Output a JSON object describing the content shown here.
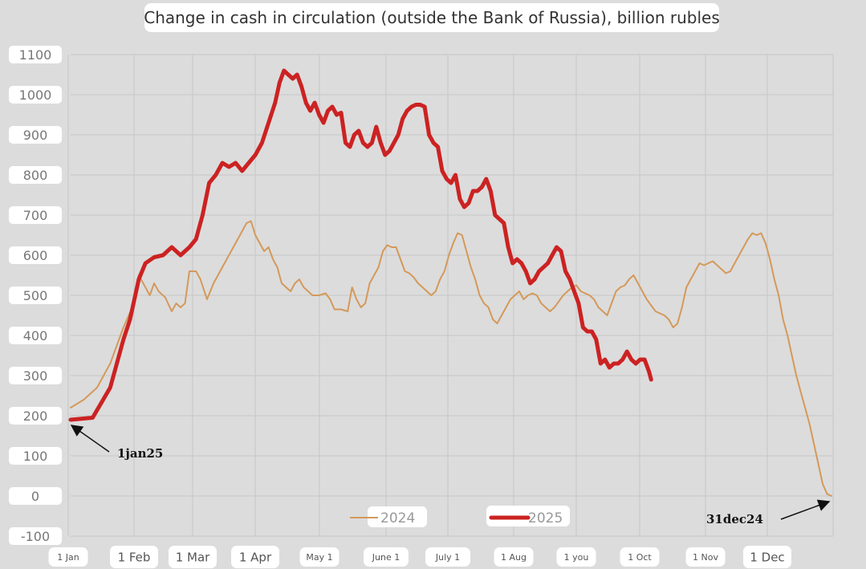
{
  "chart_data": {
    "type": "line",
    "title": "Change in cash in circulation (outside the Bank of Russia), billion rubles",
    "xlabel": "",
    "ylabel": "",
    "ylim": [
      -100,
      1100
    ],
    "yticks": [
      1100,
      1000,
      900,
      800,
      700,
      600,
      500,
      400,
      300,
      200,
      100,
      0,
      -100
    ],
    "xticks": [
      "1 Jan",
      "1 Feb",
      "1 Mar",
      "1 Apr",
      "May 1",
      "June 1",
      "July 1",
      "1 Aug",
      "1 you",
      "1 Oct",
      "1 Nov",
      "1 Dec"
    ],
    "grid": true,
    "legend": "bottom-center",
    "series": [
      {
        "name": "2024",
        "color": "#d4995a",
        "points": [
          [
            0,
            220
          ],
          [
            6,
            240
          ],
          [
            12,
            270
          ],
          [
            18,
            330
          ],
          [
            24,
            420
          ],
          [
            28,
            470
          ],
          [
            31,
            550
          ],
          [
            34,
            520
          ],
          [
            36,
            500
          ],
          [
            38,
            530
          ],
          [
            40,
            510
          ],
          [
            43,
            495
          ],
          [
            46,
            460
          ],
          [
            48,
            480
          ],
          [
            50,
            470
          ],
          [
            52,
            480
          ],
          [
            54,
            560
          ],
          [
            57,
            560
          ],
          [
            59,
            540
          ],
          [
            62,
            490
          ],
          [
            65,
            530
          ],
          [
            68,
            560
          ],
          [
            71,
            590
          ],
          [
            74,
            620
          ],
          [
            77,
            650
          ],
          [
            80,
            680
          ],
          [
            82,
            685
          ],
          [
            84,
            650
          ],
          [
            86,
            630
          ],
          [
            88,
            610
          ],
          [
            90,
            620
          ],
          [
            92,
            590
          ],
          [
            94,
            570
          ],
          [
            96,
            530
          ],
          [
            98,
            520
          ],
          [
            100,
            510
          ],
          [
            102,
            530
          ],
          [
            104,
            540
          ],
          [
            106,
            520
          ],
          [
            108,
            510
          ],
          [
            110,
            500
          ],
          [
            113,
            500
          ],
          [
            116,
            505
          ],
          [
            118,
            490
          ],
          [
            120,
            465
          ],
          [
            123,
            465
          ],
          [
            126,
            460
          ],
          [
            128,
            520
          ],
          [
            130,
            490
          ],
          [
            132,
            470
          ],
          [
            134,
            480
          ],
          [
            136,
            530
          ],
          [
            138,
            550
          ],
          [
            140,
            570
          ],
          [
            142,
            610
          ],
          [
            144,
            625
          ],
          [
            146,
            620
          ],
          [
            148,
            620
          ],
          [
            150,
            590
          ],
          [
            152,
            560
          ],
          [
            154,
            555
          ],
          [
            156,
            545
          ],
          [
            158,
            530
          ],
          [
            160,
            520
          ],
          [
            162,
            510
          ],
          [
            164,
            500
          ],
          [
            166,
            510
          ],
          [
            168,
            540
          ],
          [
            170,
            560
          ],
          [
            172,
            600
          ],
          [
            174,
            630
          ],
          [
            176,
            655
          ],
          [
            178,
            650
          ],
          [
            180,
            610
          ],
          [
            182,
            570
          ],
          [
            184,
            540
          ],
          [
            186,
            500
          ],
          [
            188,
            480
          ],
          [
            190,
            470
          ],
          [
            192,
            440
          ],
          [
            194,
            430
          ],
          [
            196,
            450
          ],
          [
            198,
            470
          ],
          [
            200,
            490
          ],
          [
            202,
            500
          ],
          [
            204,
            510
          ],
          [
            206,
            490
          ],
          [
            208,
            500
          ],
          [
            210,
            505
          ],
          [
            212,
            500
          ],
          [
            214,
            480
          ],
          [
            216,
            470
          ],
          [
            218,
            460
          ],
          [
            220,
            470
          ],
          [
            222,
            485
          ],
          [
            224,
            500
          ],
          [
            226,
            510
          ],
          [
            228,
            520
          ],
          [
            230,
            525
          ],
          [
            232,
            510
          ],
          [
            234,
            505
          ],
          [
            236,
            500
          ],
          [
            238,
            490
          ],
          [
            240,
            470
          ],
          [
            242,
            460
          ],
          [
            244,
            450
          ],
          [
            246,
            480
          ],
          [
            248,
            510
          ],
          [
            250,
            520
          ],
          [
            252,
            525
          ],
          [
            254,
            540
          ],
          [
            256,
            550
          ],
          [
            258,
            530
          ],
          [
            260,
            510
          ],
          [
            262,
            490
          ],
          [
            264,
            475
          ],
          [
            266,
            460
          ],
          [
            268,
            455
          ],
          [
            270,
            450
          ],
          [
            272,
            440
          ],
          [
            274,
            420
          ],
          [
            276,
            430
          ],
          [
            278,
            470
          ],
          [
            280,
            520
          ],
          [
            282,
            540
          ],
          [
            284,
            560
          ],
          [
            286,
            580
          ],
          [
            288,
            575
          ],
          [
            290,
            580
          ],
          [
            292,
            585
          ],
          [
            294,
            575
          ],
          [
            296,
            565
          ],
          [
            298,
            555
          ],
          [
            300,
            560
          ],
          [
            302,
            580
          ],
          [
            304,
            600
          ],
          [
            306,
            620
          ],
          [
            308,
            640
          ],
          [
            310,
            655
          ],
          [
            312,
            650
          ],
          [
            314,
            655
          ],
          [
            316,
            630
          ],
          [
            318,
            590
          ],
          [
            320,
            540
          ],
          [
            322,
            500
          ],
          [
            324,
            440
          ],
          [
            326,
            400
          ],
          [
            328,
            350
          ],
          [
            330,
            300
          ],
          [
            332,
            260
          ],
          [
            334,
            220
          ],
          [
            336,
            180
          ],
          [
            338,
            130
          ],
          [
            340,
            80
          ],
          [
            342,
            30
          ],
          [
            344,
            5
          ],
          [
            346,
            0
          ]
        ]
      },
      {
        "name": "2025",
        "color": "#cc2222",
        "points": [
          [
            0,
            190
          ],
          [
            10,
            195
          ],
          [
            18,
            270
          ],
          [
            24,
            390
          ],
          [
            27,
            440
          ],
          [
            31,
            540
          ],
          [
            34,
            580
          ],
          [
            38,
            595
          ],
          [
            42,
            600
          ],
          [
            46,
            620
          ],
          [
            50,
            600
          ],
          [
            54,
            620
          ],
          [
            57,
            640
          ],
          [
            60,
            700
          ],
          [
            63,
            780
          ],
          [
            66,
            800
          ],
          [
            69,
            830
          ],
          [
            72,
            820
          ],
          [
            75,
            830
          ],
          [
            78,
            810
          ],
          [
            81,
            830
          ],
          [
            84,
            850
          ],
          [
            87,
            880
          ],
          [
            90,
            930
          ],
          [
            93,
            980
          ],
          [
            95,
            1030
          ],
          [
            97,
            1060
          ],
          [
            99,
            1050
          ],
          [
            101,
            1040
          ],
          [
            103,
            1050
          ],
          [
            105,
            1020
          ],
          [
            107,
            980
          ],
          [
            109,
            960
          ],
          [
            111,
            980
          ],
          [
            113,
            950
          ],
          [
            115,
            930
          ],
          [
            117,
            960
          ],
          [
            119,
            970
          ],
          [
            121,
            950
          ],
          [
            123,
            955
          ],
          [
            125,
            880
          ],
          [
            127,
            870
          ],
          [
            129,
            900
          ],
          [
            131,
            910
          ],
          [
            133,
            880
          ],
          [
            135,
            870
          ],
          [
            137,
            880
          ],
          [
            139,
            920
          ],
          [
            141,
            880
          ],
          [
            143,
            850
          ],
          [
            145,
            860
          ],
          [
            147,
            880
          ],
          [
            149,
            900
          ],
          [
            151,
            940
          ],
          [
            153,
            960
          ],
          [
            155,
            970
          ],
          [
            157,
            975
          ],
          [
            159,
            975
          ],
          [
            161,
            970
          ],
          [
            163,
            900
          ],
          [
            165,
            880
          ],
          [
            167,
            870
          ],
          [
            169,
            810
          ],
          [
            171,
            790
          ],
          [
            173,
            780
          ],
          [
            175,
            800
          ],
          [
            177,
            740
          ],
          [
            179,
            720
          ],
          [
            181,
            730
          ],
          [
            183,
            760
          ],
          [
            185,
            760
          ],
          [
            187,
            770
          ],
          [
            189,
            790
          ],
          [
            191,
            760
          ],
          [
            193,
            700
          ],
          [
            195,
            690
          ],
          [
            197,
            680
          ],
          [
            199,
            620
          ],
          [
            201,
            580
          ],
          [
            203,
            590
          ],
          [
            205,
            580
          ],
          [
            207,
            560
          ],
          [
            209,
            530
          ],
          [
            211,
            540
          ],
          [
            213,
            560
          ],
          [
            215,
            570
          ],
          [
            217,
            580
          ],
          [
            219,
            600
          ],
          [
            221,
            620
          ],
          [
            223,
            610
          ],
          [
            225,
            560
          ],
          [
            227,
            540
          ],
          [
            229,
            510
          ],
          [
            231,
            480
          ],
          [
            233,
            420
          ],
          [
            235,
            410
          ],
          [
            237,
            410
          ],
          [
            239,
            390
          ],
          [
            241,
            330
          ],
          [
            243,
            340
          ],
          [
            245,
            320
          ],
          [
            247,
            330
          ],
          [
            249,
            330
          ],
          [
            251,
            340
          ],
          [
            253,
            360
          ],
          [
            255,
            340
          ],
          [
            257,
            330
          ],
          [
            259,
            340
          ],
          [
            261,
            340
          ],
          [
            263,
            310
          ],
          [
            264,
            290
          ]
        ]
      }
    ],
    "annotations": [
      {
        "text": "1jan25"
      },
      {
        "text": "31dec24"
      }
    ]
  }
}
